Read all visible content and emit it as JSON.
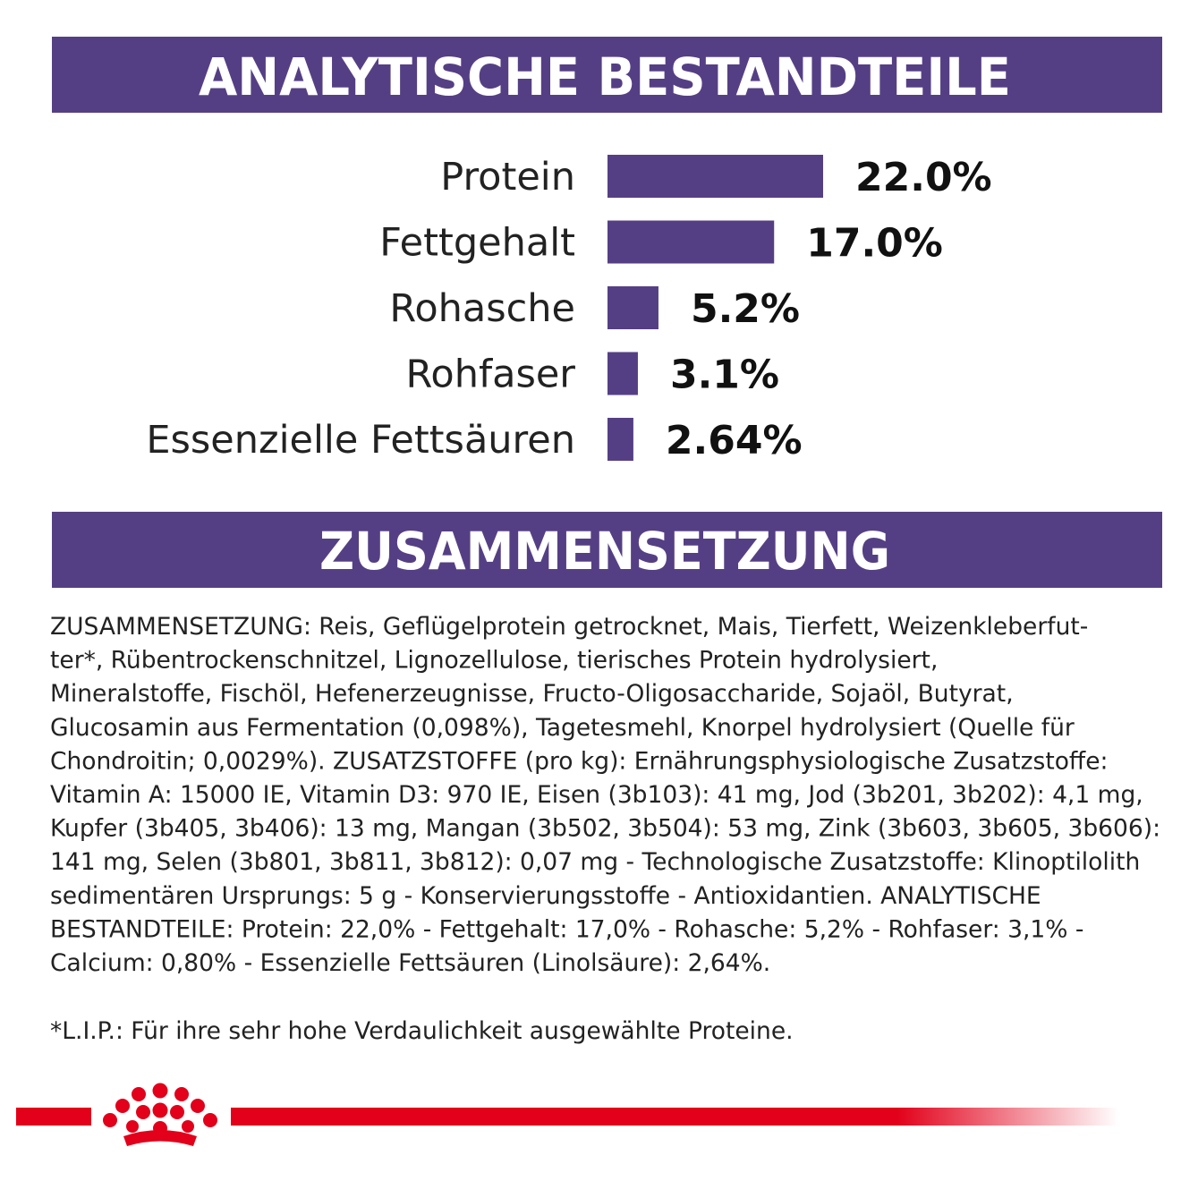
{
  "chart_data": {
    "type": "hbar",
    "title": "ANALYTISCHE BESTANDTEILE",
    "categories": [
      "Protein",
      "Fettgehalt",
      "Rohasche",
      "Rohfaser",
      "Essenzielle Fettsäuren"
    ],
    "values": [
      22.0,
      17.0,
      5.2,
      3.1,
      2.64
    ],
    "value_labels": [
      "22.0%",
      "17.0%",
      "5.2%",
      "3.1%",
      "2.64%"
    ],
    "color": "#553f84"
  },
  "composition": {
    "title": "ZUSAMMENSETZUNG",
    "lines": [
      "ZUSAMMENSETZUNG: Reis, Geflügelprotein getrocknet, Mais, Tierfett, Weizenkleberfut-",
      "ter*, Rübentrockenschnitzel, Lignozellulose, tierisches Protein hydrolysiert,",
      "Mineralstoffe, Fischöl, Hefenerzeugnisse, Fructo-Oligosaccharide, Sojaöl, Butyrat,",
      "Glucosamin aus Fermentation (0,098%), Tagetesmehl, Knorpel hydrolysiert (Quelle für",
      "Chondroitin; 0,0029%). ZUSATZSTOFFE (pro kg): Ernährungsphysiologische Zusatzstoffe:",
      "Vitamin A: 15000 IE, Vitamin D3: 970 IE, Eisen (3b103): 41 mg, Jod (3b201, 3b202): 4,1 mg,",
      "Kupfer (3b405, 3b406): 13 mg, Mangan (3b502, 3b504): 53 mg, Zink (3b603, 3b605, 3b606):",
      "141 mg, Selen (3b801, 3b811, 3b812): 0,07 mg - Technologische Zusatzstoffe: Klinoptilolith",
      "sedimentären Ursprungs: 5 g - Konservierungsstoffe - Antioxidantien. ANALYTISCHE",
      "BESTANDTEILE: Protein: 22,0% - Fettgehalt: 17,0% - Rohasche: 5,2% - Rohfaser: 3,1% -",
      "Calcium: 0,80% - Essenzielle Fettsäuren (Linolsäure): 2,64%."
    ]
  },
  "footnote": "*L.I.P.: Für ihre sehr hohe Verdaulichkeit ausgewählte Proteine."
}
